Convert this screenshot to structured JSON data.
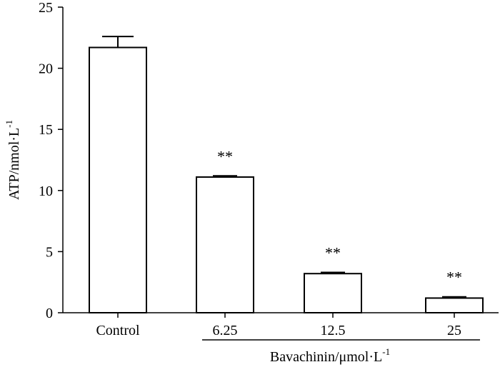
{
  "chart_data": {
    "type": "bar",
    "ylabel": "ATP/nmol·L",
    "ylabel_superscript": "-1",
    "ylim": [
      0,
      25
    ],
    "yticks": [
      0,
      5,
      10,
      15,
      20,
      25
    ],
    "categories": [
      "Control",
      "6.25",
      "12.5",
      "25"
    ],
    "values": [
      21.7,
      11.1,
      3.2,
      1.2
    ],
    "errors": [
      0.9,
      0.1,
      0.1,
      0.1
    ],
    "significance": [
      "",
      "**",
      "**",
      "**"
    ],
    "group_label": "Bavachinin/μmol·L",
    "group_label_superscript": "-1",
    "grid": false,
    "bar_fill": "#ffffff",
    "bar_stroke": "#000000"
  }
}
